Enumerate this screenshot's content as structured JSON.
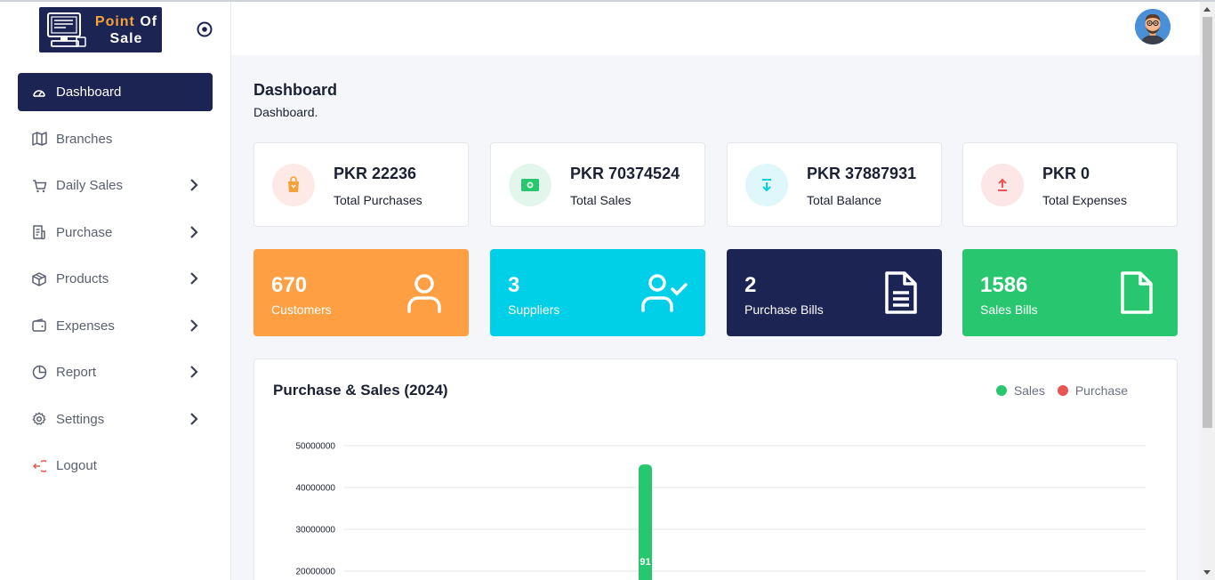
{
  "sidebar": {
    "logo": {
      "line1a": "Point ",
      "line1b": "Of",
      "line2": "Sale"
    },
    "items": [
      {
        "label": "Dashboard",
        "icon": "gauge-icon",
        "active": true,
        "chevron": false
      },
      {
        "label": "Branches",
        "icon": "map-icon",
        "active": false,
        "chevron": false
      },
      {
        "label": "Daily Sales",
        "icon": "cart-icon",
        "active": false,
        "chevron": true
      },
      {
        "label": "Purchase",
        "icon": "receipt-icon",
        "active": false,
        "chevron": true
      },
      {
        "label": "Products",
        "icon": "box-icon",
        "active": false,
        "chevron": true
      },
      {
        "label": "Expenses",
        "icon": "wallet-icon",
        "active": false,
        "chevron": true
      },
      {
        "label": "Report",
        "icon": "pie-chart-icon",
        "active": false,
        "chevron": true
      },
      {
        "label": "Settings",
        "icon": "gear-icon",
        "active": false,
        "chevron": true
      },
      {
        "label": "Logout",
        "icon": "logout-icon",
        "active": false,
        "chevron": false
      }
    ]
  },
  "page": {
    "title": "Dashboard",
    "breadcrumb": "Dashboard."
  },
  "stats": [
    {
      "value": "PKR 22236",
      "label": "Total Purchases",
      "icon": "shopping-bag-icon",
      "bg": "#fde9e5",
      "fg": "#f6a23a"
    },
    {
      "value": "PKR 70374524",
      "label": "Total Sales",
      "icon": "cash-icon",
      "bg": "#e3f6ec",
      "fg": "#28c76f"
    },
    {
      "value": "PKR 37887931",
      "label": "Total Balance",
      "icon": "download-icon",
      "bg": "#dff7fb",
      "fg": "#00cfe8"
    },
    {
      "value": "PKR 0",
      "label": "Total Expenses",
      "icon": "upload-icon",
      "bg": "#fde6e6",
      "fg": "#ea5455"
    }
  ],
  "counts": [
    {
      "value": "670",
      "label": "Customers",
      "icon": "user-icon",
      "bg": "#ff9f43"
    },
    {
      "value": "3",
      "label": "Suppliers",
      "icon": "user-check-icon",
      "bg": "#00cfe8"
    },
    {
      "value": "2",
      "label": "Purchase Bills",
      "icon": "file-text-icon",
      "bg": "#1b2452"
    },
    {
      "value": "1586",
      "label": "Sales Bills",
      "icon": "file-icon",
      "bg": "#28c76f"
    }
  ],
  "chart": {
    "title": "Purchase & Sales (2024)",
    "legend": [
      {
        "name": "Sales",
        "color": "#28c76f"
      },
      {
        "name": "Purchase",
        "color": "#ea5455"
      }
    ]
  },
  "chart_data": {
    "type": "bar",
    "title": "Purchase & Sales (2024)",
    "yticks": [
      50000000,
      40000000,
      30000000,
      20000000
    ],
    "ylim": [
      0,
      50000000
    ],
    "grid": true,
    "legend_position": "top-right",
    "series": [
      {
        "name": "Sales",
        "color": "#28c76f",
        "values": [
          45500000
        ]
      },
      {
        "name": "Purchase",
        "color": "#ea5455",
        "values": []
      }
    ],
    "visible_bar_label": "91"
  }
}
